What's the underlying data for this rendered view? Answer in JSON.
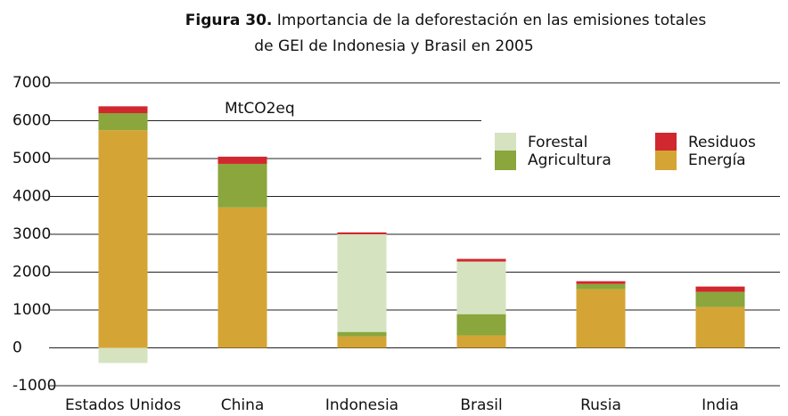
{
  "chart_data": {
    "type": "stacked_bar",
    "title_label": "Figura 30.",
    "title": [
      "Importancia de la deforestación en las emisiones totales",
      "de GEI de Indonesia y Brasil en 2005"
    ],
    "unit_label": "MtCO2eq",
    "categories": [
      "Estados Unidos",
      "China",
      "Indonesia",
      "Brasil",
      "Rusia",
      "India"
    ],
    "series": [
      {
        "name": "Energía",
        "color": "#d4a535",
        "values": [
          5750,
          3710,
          300,
          330,
          1550,
          1080
        ]
      },
      {
        "name": "Agricultura",
        "color": "#8aa63c",
        "values": [
          450,
          1150,
          120,
          560,
          140,
          400
        ]
      },
      {
        "name": "Forestal",
        "color": "#d6e3c0",
        "values": [
          -400,
          0,
          2580,
          1390,
          0,
          0
        ]
      },
      {
        "name": "Residuos",
        "color": "#d0282e",
        "values": [
          180,
          190,
          50,
          70,
          70,
          140
        ]
      }
    ],
    "ylim": [
      -1000,
      7000
    ],
    "yticks": [
      -1000,
      0,
      1000,
      2000,
      3000,
      4000,
      5000,
      6000,
      7000
    ],
    "grid": true
  }
}
